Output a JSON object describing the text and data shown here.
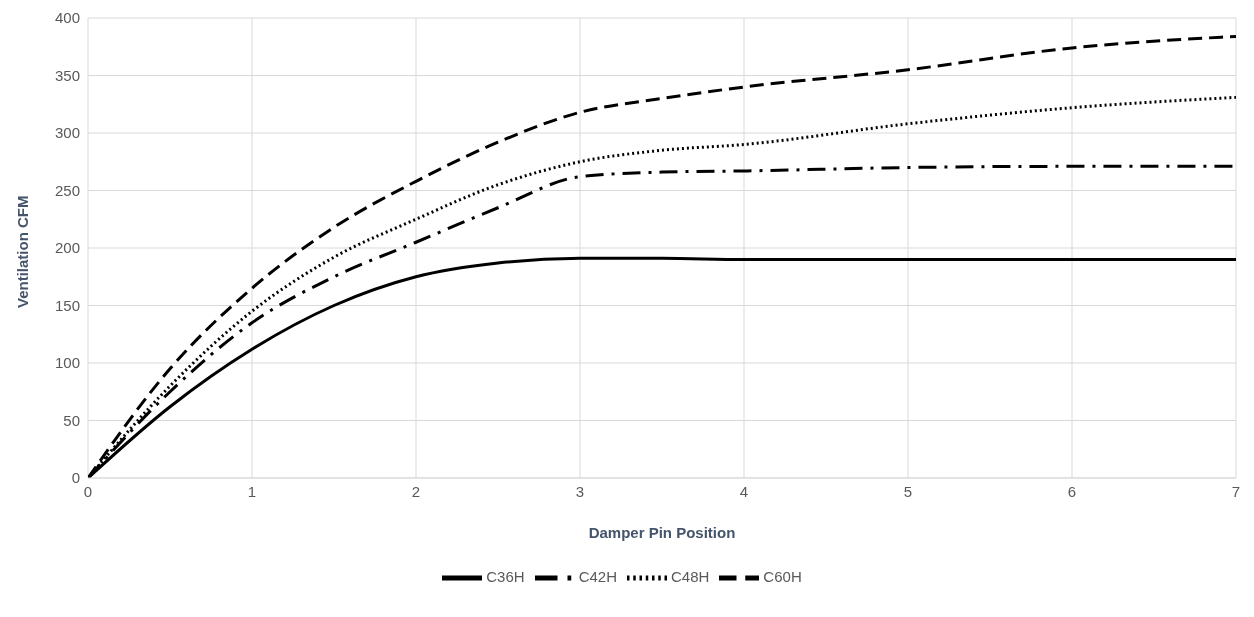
{
  "chart_data": {
    "type": "line",
    "xlabel": "Damper Pin Position",
    "ylabel": "Ventilation CFM",
    "x": [
      0,
      0.5,
      1,
      1.5,
      2,
      2.5,
      3,
      3.5,
      4,
      5,
      6,
      7
    ],
    "series": [
      {
        "name": "C36H",
        "color": "#000000",
        "line_style": "solid",
        "values": [
          0,
          62,
          112,
          150,
          175,
          187,
          191,
          191,
          190,
          190,
          190,
          190
        ]
      },
      {
        "name": "C42H",
        "color": "#000000",
        "line_style": "dashdot",
        "values": [
          0,
          75,
          135,
          175,
          205,
          235,
          262,
          266,
          267,
          270,
          271,
          271
        ]
      },
      {
        "name": "C48H",
        "color": "#000000",
        "line_style": "dotted",
        "values": [
          0,
          80,
          145,
          192,
          225,
          255,
          275,
          285,
          290,
          308,
          322,
          331
        ]
      },
      {
        "name": "C60H",
        "color": "#000000",
        "line_style": "dashed",
        "values": [
          0,
          95,
          165,
          218,
          258,
          292,
          318,
          330,
          340,
          355,
          374,
          384
        ]
      }
    ],
    "xlim": [
      0,
      7
    ],
    "xticks": [
      0,
      1,
      2,
      3,
      4,
      5,
      6,
      7
    ],
    "ylim": [
      0,
      400
    ],
    "yticks": [
      0,
      50,
      100,
      150,
      200,
      250,
      300,
      350,
      400
    ],
    "grid": true,
    "legend": "bottom",
    "marker": "none"
  }
}
